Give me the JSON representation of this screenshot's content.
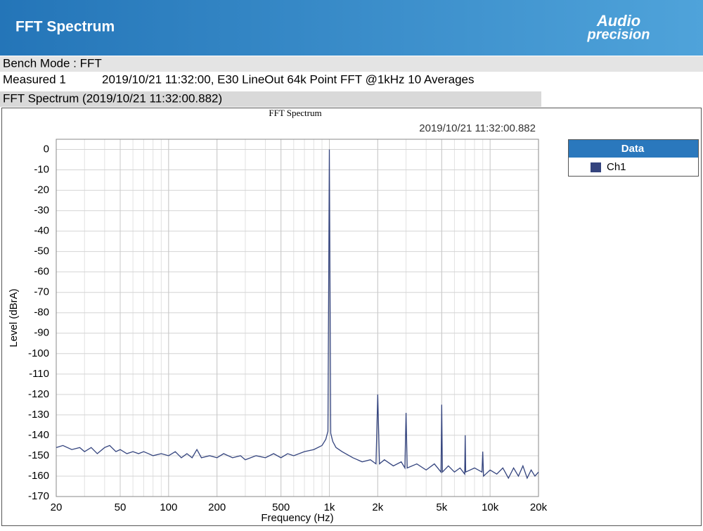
{
  "header": {
    "title": "FFT Spectrum",
    "logo": {
      "line1": "Audio",
      "line2": "precision"
    }
  },
  "info": {
    "bench_mode": "Bench Mode : FFT",
    "measured_label": "Measured 1",
    "measured_text": "2019/10/21 11:32:00, E30 LineOut 64k Point FFT @1kHz 10 Averages",
    "section": "FFT Spectrum (2019/10/21 11:32:00.882)"
  },
  "chart_data": {
    "type": "line",
    "title": "FFT Spectrum",
    "subtitle": "2019/10/21 11:32:00.882",
    "x_label": "Frequency (Hz)",
    "y_label": "Level (dBrA)",
    "x_scale": "log",
    "grid": true,
    "legend_title": "Data",
    "legend": "right",
    "xlim": [
      20,
      20000
    ],
    "ylim": [
      -170,
      5
    ],
    "xticks": [
      20,
      50,
      100,
      200,
      500,
      {
        "value": 1000,
        "label": "1k"
      },
      {
        "value": 2000,
        "label": "2k"
      },
      {
        "value": 5000,
        "label": "5k"
      },
      {
        "value": 10000,
        "label": "10k"
      },
      {
        "value": 20000,
        "label": "20k"
      }
    ],
    "yticks": [
      0,
      -10,
      -20,
      -30,
      -40,
      -50,
      -60,
      -70,
      -80,
      -90,
      -100,
      -110,
      -120,
      -130,
      -140,
      -150,
      -160,
      -170
    ],
    "x": [
      20,
      22,
      25,
      28,
      30,
      33,
      36,
      40,
      43,
      47,
      50,
      55,
      60,
      65,
      70,
      75,
      80,
      90,
      100,
      110,
      120,
      130,
      140,
      150,
      160,
      180,
      200,
      220,
      250,
      280,
      300,
      350,
      400,
      450,
      500,
      550,
      600,
      700,
      800,
      900,
      950,
      980,
      1000,
      1020,
      1050,
      1100,
      1200,
      1400,
      1600,
      1800,
      1950,
      2000,
      2050,
      2200,
      2500,
      2800,
      2950,
      3000,
      3050,
      3500,
      4000,
      4500,
      4950,
      5000,
      5050,
      5500,
      6000,
      6500,
      6950,
      7000,
      7050,
      8000,
      8900,
      9000,
      9100,
      10000,
      11000,
      12000,
      13000,
      14000,
      15000,
      16000,
      17000,
      18000,
      19000,
      20000
    ],
    "series": [
      {
        "name": "Ch1",
        "color": "#34447e",
        "values": [
          -146,
          -145,
          -147,
          -146,
          -148,
          -146,
          -149,
          -146,
          -145,
          -148,
          -147,
          -149,
          -148,
          -149,
          -148,
          -149,
          -150,
          -149,
          -150,
          -148,
          -151,
          -149,
          -151,
          -147,
          -151,
          -150,
          -151,
          -149,
          -151,
          -150,
          -152,
          -150,
          -151,
          -149,
          -151,
          -149,
          -150,
          -148,
          -147,
          -145,
          -142,
          -138,
          0,
          -139,
          -143,
          -146,
          -148,
          -151,
          -153,
          -152,
          -154,
          -120,
          -154,
          -152,
          -155,
          -153,
          -156,
          -129,
          -156,
          -154,
          -157,
          -154,
          -158,
          -125,
          -158,
          -155,
          -158,
          -156,
          -159,
          -140,
          -158,
          -156,
          -158,
          -148,
          -160,
          -157,
          -159,
          -156,
          -161,
          -156,
          -160,
          -155,
          -161,
          -157,
          -160,
          -158
        ]
      }
    ]
  }
}
